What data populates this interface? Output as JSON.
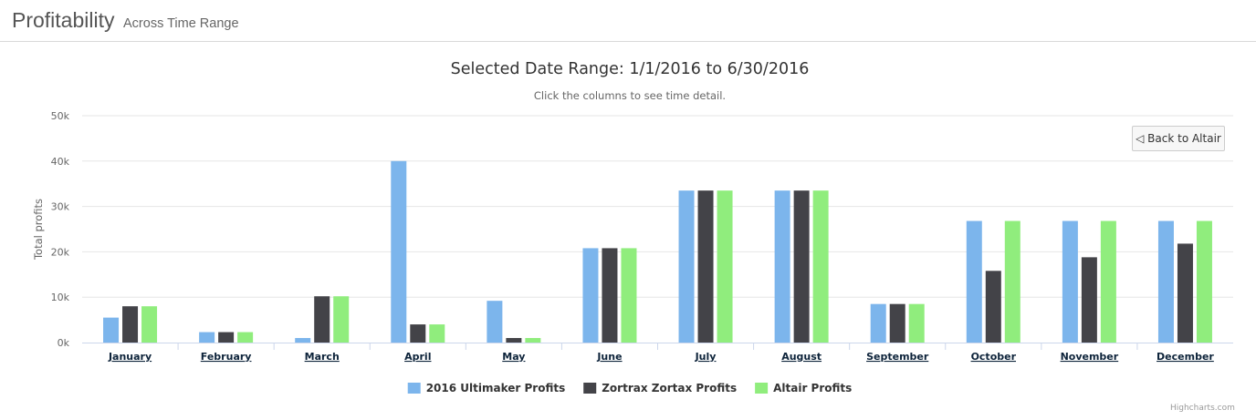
{
  "header": {
    "title": "Profitability",
    "subtitle": "Across Time Range"
  },
  "back_button_label": "◁ Back to Altair",
  "credits": "Highcharts.com",
  "colors": {
    "series": [
      "#7cb5ec",
      "#434348",
      "#90ed7d"
    ],
    "grid": "#e6e6e6",
    "axis_text": "#666666",
    "category_text": "#0d233a"
  },
  "chart_data": {
    "type": "bar",
    "title": "Selected Date Range: 1/1/2016 to 6/30/2016",
    "subtitle": "Click the columns to see time detail.",
    "xlabel": "",
    "ylabel": "Total profits",
    "ylim": [
      0,
      50000
    ],
    "y_ticks": [
      "0k",
      "10k",
      "20k",
      "30k",
      "40k",
      "50k"
    ],
    "grid": true,
    "legend_position": "bottom-center",
    "categories": [
      "January",
      "February",
      "March",
      "April",
      "May",
      "June",
      "July",
      "August",
      "September",
      "October",
      "November",
      "December"
    ],
    "series": [
      {
        "name": "2016 Ultimaker Profits",
        "values": [
          5500,
          2300,
          1000,
          40000,
          9200,
          20800,
          33500,
          33500,
          8500,
          26800,
          26800,
          26800
        ]
      },
      {
        "name": "Zortrax Zortax Profits",
        "values": [
          8000,
          2300,
          10200,
          4000,
          1000,
          20800,
          33500,
          33500,
          8500,
          15800,
          18800,
          21800
        ]
      },
      {
        "name": "Altair Profits",
        "values": [
          8000,
          2300,
          10200,
          4000,
          1000,
          20800,
          33500,
          33500,
          8500,
          26800,
          26800,
          26800
        ]
      }
    ]
  }
}
